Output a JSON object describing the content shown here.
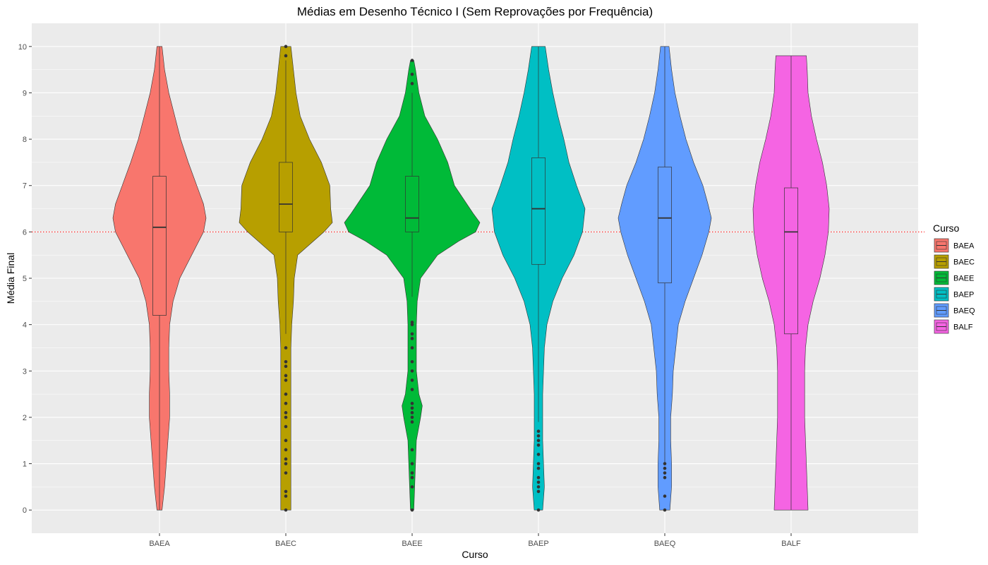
{
  "chart_data": {
    "type": "violin",
    "title": "Médias em Desenho Técnico I (Sem Reprovações por Frequência)",
    "xlabel": "Curso",
    "ylabel": "Média Final",
    "ylim": [
      -0.5,
      10.5
    ],
    "yticks": [
      0,
      1,
      2,
      3,
      4,
      5,
      6,
      7,
      8,
      9,
      10
    ],
    "reference_line": {
      "y": 6,
      "color": "#ff0000",
      "style": "dotted"
    },
    "grid": true,
    "legend": {
      "title": "Curso",
      "placement": "right"
    },
    "categories": [
      "BAEA",
      "BAEC",
      "BAEE",
      "BAEP",
      "BAEQ",
      "BALF"
    ],
    "series": [
      {
        "name": "BAEA",
        "color": "#F8766D",
        "box": {
          "q1": 4.2,
          "median": 6.1,
          "q3": 7.2,
          "whisker_low": 0,
          "whisker_high": 10
        },
        "outliers": [],
        "density": [
          [
            0,
            0.03
          ],
          [
            0.5,
            0.06
          ],
          [
            1,
            0.08
          ],
          [
            1.5,
            0.1
          ],
          [
            2,
            0.12
          ],
          [
            2.5,
            0.12
          ],
          [
            3,
            0.11
          ],
          [
            3.5,
            0.11
          ],
          [
            4,
            0.12
          ],
          [
            4.5,
            0.16
          ],
          [
            5,
            0.24
          ],
          [
            5.5,
            0.38
          ],
          [
            6,
            0.52
          ],
          [
            6.3,
            0.55
          ],
          [
            6.6,
            0.52
          ],
          [
            7,
            0.44
          ],
          [
            7.5,
            0.34
          ],
          [
            8,
            0.25
          ],
          [
            8.5,
            0.18
          ],
          [
            9,
            0.11
          ],
          [
            9.5,
            0.06
          ],
          [
            10,
            0.03
          ]
        ]
      },
      {
        "name": "BAEC",
        "color": "#B79F00",
        "box": {
          "q1": 6.0,
          "median": 6.6,
          "q3": 7.5,
          "whisker_low": 3.8,
          "whisker_high": 9.7
        },
        "outliers": [
          0,
          0.3,
          0.4,
          0.8,
          1.0,
          1.1,
          1.3,
          1.5,
          1.8,
          2.0,
          2.1,
          2.3,
          2.5,
          2.8,
          2.9,
          3.1,
          3.2,
          3.5,
          9.8,
          10
        ],
        "density": [
          [
            0,
            0.06
          ],
          [
            0.5,
            0.06
          ],
          [
            1,
            0.06
          ],
          [
            1.5,
            0.06
          ],
          [
            2,
            0.06
          ],
          [
            2.5,
            0.06
          ],
          [
            3,
            0.06
          ],
          [
            3.5,
            0.06
          ],
          [
            4,
            0.07
          ],
          [
            4.5,
            0.09
          ],
          [
            5,
            0.1
          ],
          [
            5.5,
            0.14
          ],
          [
            6,
            0.45
          ],
          [
            6.2,
            0.55
          ],
          [
            6.5,
            0.53
          ],
          [
            7,
            0.52
          ],
          [
            7.5,
            0.42
          ],
          [
            8,
            0.28
          ],
          [
            8.5,
            0.17
          ],
          [
            9,
            0.12
          ],
          [
            9.5,
            0.09
          ],
          [
            10,
            0.06
          ]
        ]
      },
      {
        "name": "BAEE",
        "color": "#00BA38",
        "box": {
          "q1": 6.0,
          "median": 6.3,
          "q3": 7.2,
          "whisker_low": 4.6,
          "whisker_high": 9.0
        },
        "outliers": [
          0,
          0.5,
          0.7,
          0.8,
          1.0,
          1.3,
          1.9,
          2.0,
          2.1,
          2.2,
          2.3,
          2.6,
          2.8,
          3.0,
          3.2,
          3.5,
          3.7,
          3.8,
          4.0,
          4.05,
          9.2,
          9.4,
          9.7
        ],
        "density": [
          [
            0,
            0.02
          ],
          [
            0.5,
            0.03
          ],
          [
            1,
            0.04
          ],
          [
            1.5,
            0.05
          ],
          [
            2,
            0.1
          ],
          [
            2.25,
            0.12
          ],
          [
            2.5,
            0.08
          ],
          [
            3,
            0.05
          ],
          [
            3.5,
            0.05
          ],
          [
            4,
            0.05
          ],
          [
            4.5,
            0.06
          ],
          [
            5,
            0.1
          ],
          [
            5.5,
            0.3
          ],
          [
            5.8,
            0.55
          ],
          [
            6,
            0.75
          ],
          [
            6.2,
            0.8
          ],
          [
            6.4,
            0.72
          ],
          [
            7,
            0.5
          ],
          [
            7.5,
            0.42
          ],
          [
            8,
            0.3
          ],
          [
            8.5,
            0.15
          ],
          [
            9,
            0.08
          ],
          [
            9.5,
            0.04
          ],
          [
            9.7,
            0.02
          ]
        ]
      },
      {
        "name": "BAEP",
        "color": "#00BFC4",
        "box": {
          "q1": 5.3,
          "median": 6.5,
          "q3": 7.6,
          "whisker_low": 1.9,
          "whisker_high": 10
        },
        "outliers": [
          0,
          0.4,
          0.5,
          0.6,
          0.7,
          0.9,
          1.0,
          1.2,
          1.4,
          1.5,
          1.6,
          1.7
        ],
        "density": [
          [
            0,
            0.05
          ],
          [
            0.5,
            0.07
          ],
          [
            1,
            0.06
          ],
          [
            1.5,
            0.05
          ],
          [
            2,
            0.05
          ],
          [
            2.5,
            0.05
          ],
          [
            3,
            0.06
          ],
          [
            3.5,
            0.07
          ],
          [
            4,
            0.1
          ],
          [
            4.5,
            0.17
          ],
          [
            5,
            0.28
          ],
          [
            5.5,
            0.42
          ],
          [
            6,
            0.52
          ],
          [
            6.5,
            0.55
          ],
          [
            7,
            0.45
          ],
          [
            7.5,
            0.36
          ],
          [
            8,
            0.3
          ],
          [
            8.5,
            0.23
          ],
          [
            9,
            0.17
          ],
          [
            9.5,
            0.12
          ],
          [
            10,
            0.08
          ]
        ]
      },
      {
        "name": "BAEQ",
        "color": "#619CFF",
        "box": {
          "q1": 4.9,
          "median": 6.3,
          "q3": 7.4,
          "whisker_low": 1.0,
          "whisker_high": 10
        },
        "outliers": [
          0,
          0.3,
          0.7,
          0.8,
          0.9,
          1.0
        ],
        "density": [
          [
            0,
            0.06
          ],
          [
            0.5,
            0.08
          ],
          [
            1,
            0.08
          ],
          [
            1.5,
            0.07
          ],
          [
            2,
            0.07
          ],
          [
            2.5,
            0.09
          ],
          [
            3,
            0.1
          ],
          [
            3.5,
            0.13
          ],
          [
            4,
            0.16
          ],
          [
            4.5,
            0.24
          ],
          [
            5,
            0.34
          ],
          [
            5.5,
            0.44
          ],
          [
            6,
            0.52
          ],
          [
            6.3,
            0.55
          ],
          [
            6.6,
            0.51
          ],
          [
            7,
            0.45
          ],
          [
            7.5,
            0.34
          ],
          [
            8,
            0.25
          ],
          [
            8.5,
            0.18
          ],
          [
            9,
            0.12
          ],
          [
            9.5,
            0.08
          ],
          [
            10,
            0.05
          ]
        ]
      },
      {
        "name": "BALF",
        "color": "#F564E3",
        "box": {
          "q1": 3.8,
          "median": 6.0,
          "q3": 6.95,
          "whisker_low": 0,
          "whisker_high": 9.8
        },
        "outliers": [],
        "density": [
          [
            0,
            0.2
          ],
          [
            0.5,
            0.19
          ],
          [
            1,
            0.18
          ],
          [
            1.5,
            0.17
          ],
          [
            2,
            0.16
          ],
          [
            2.5,
            0.16
          ],
          [
            3,
            0.16
          ],
          [
            3.5,
            0.17
          ],
          [
            4,
            0.2
          ],
          [
            4.5,
            0.26
          ],
          [
            5,
            0.34
          ],
          [
            5.5,
            0.4
          ],
          [
            6,
            0.44
          ],
          [
            6.5,
            0.45
          ],
          [
            7,
            0.42
          ],
          [
            7.5,
            0.37
          ],
          [
            8,
            0.3
          ],
          [
            8.5,
            0.24
          ],
          [
            9,
            0.2
          ],
          [
            9.5,
            0.19
          ],
          [
            9.8,
            0.18
          ]
        ]
      }
    ]
  }
}
